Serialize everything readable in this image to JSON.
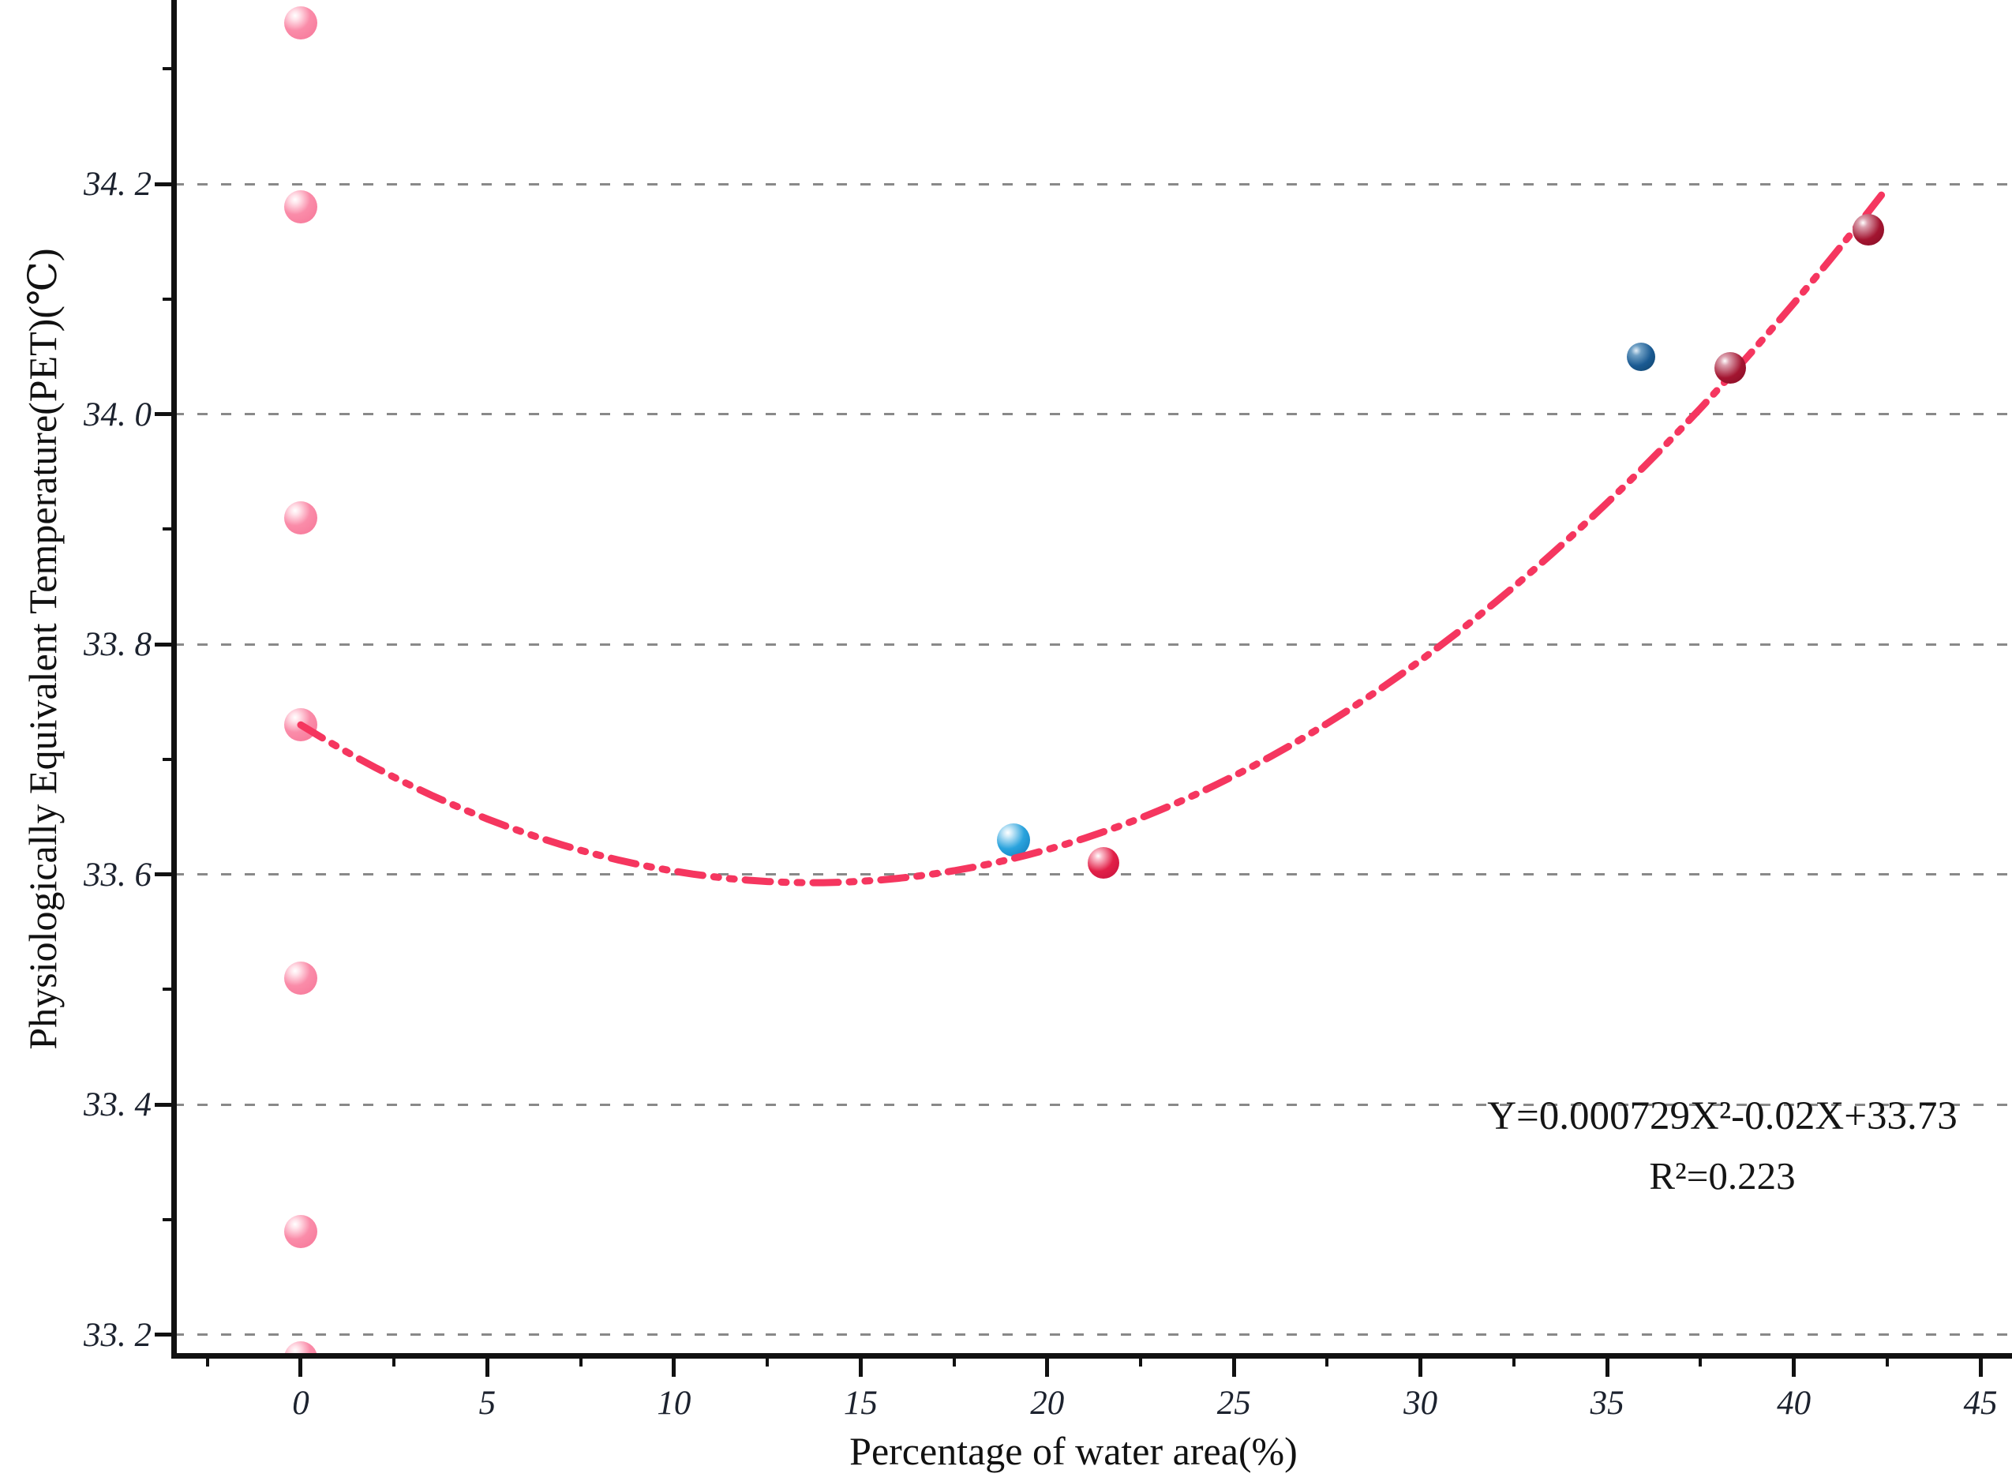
{
  "figure": {
    "background": "#ffffff",
    "axis_color": "#111111",
    "gridline_color": "#898989",
    "y_axis": {
      "title": "Physiologically Equivalent Temperature(PET)(℃)",
      "tick_labels": [
        "33. 2",
        "33. 4",
        "33. 6",
        "33. 8",
        "34. 0",
        "34. 2"
      ],
      "tick_values": [
        33.2,
        33.4,
        33.6,
        33.8,
        34.0,
        34.2
      ],
      "minor_tick_values": [
        33.3,
        33.5,
        33.7,
        33.9,
        34.1,
        34.3
      ]
    },
    "x_axis": {
      "title": "Percentage of water area(%)",
      "tick_labels": [
        "0",
        "5",
        "10",
        "15",
        "20",
        "25",
        "30",
        "35",
        "40",
        "45"
      ],
      "tick_values": [
        0,
        5,
        10,
        15,
        20,
        25,
        30,
        35,
        40,
        45
      ],
      "minor_tick_values": [
        -2.5,
        2.5,
        7.5,
        12.5,
        17.5,
        22.5,
        27.5,
        32.5,
        37.5,
        42.5
      ]
    },
    "annotation": {
      "line1": "Y=0.000729X²-0.02X+33.73",
      "line2": "R²=0.223"
    }
  },
  "chart_data": {
    "type": "scatter",
    "title": "",
    "xlabel": "Percentage of water area(%)",
    "ylabel": "Physiologically Equivalent Temperature(PET)(℃)",
    "xlim": [
      -3.4,
      45.9
    ],
    "ylim": [
      33.18,
      34.36
    ],
    "grid": "horizontal dashed gridlines at each major y tick",
    "series": [
      {
        "name": "light-pink-points",
        "color": "#FA8CA9",
        "diameter": 42,
        "layer": "below-curve",
        "points": [
          [
            0,
            34.34
          ],
          [
            0,
            34.18
          ],
          [
            0,
            33.91
          ],
          [
            0,
            33.73
          ],
          [
            0,
            33.51
          ],
          [
            0,
            33.29
          ],
          [
            0,
            33.18
          ]
        ]
      },
      {
        "name": "bright-blue-point",
        "color": "#2AA3DD",
        "diameter": 42,
        "layer": "below-curve",
        "points": [
          [
            19.1,
            33.63
          ]
        ]
      },
      {
        "name": "bright-red-point",
        "color": "#E22048",
        "diameter": 40,
        "layer": "below-curve",
        "points": [
          [
            21.5,
            33.61
          ]
        ]
      },
      {
        "name": "dark-blue-point",
        "color": "#1A5A92",
        "diameter": 36,
        "layer": "above-curve",
        "points": [
          [
            35.9,
            34.05
          ]
        ]
      },
      {
        "name": "dark-red-points",
        "color": "#A31530",
        "diameter": 40,
        "layer": "above-curve",
        "points": [
          [
            38.3,
            34.04
          ],
          [
            42.0,
            34.16
          ]
        ]
      }
    ],
    "fit_curve": {
      "type": "quadratic",
      "a": 0.000729,
      "b": -0.02,
      "c": 33.73,
      "x_range": [
        0,
        42.5
      ],
      "color": "#F5365F",
      "style": "dash-dot-dot",
      "equation": "Y=0.000729X²-0.02X+33.73",
      "r_squared": "R²=0.223"
    }
  }
}
